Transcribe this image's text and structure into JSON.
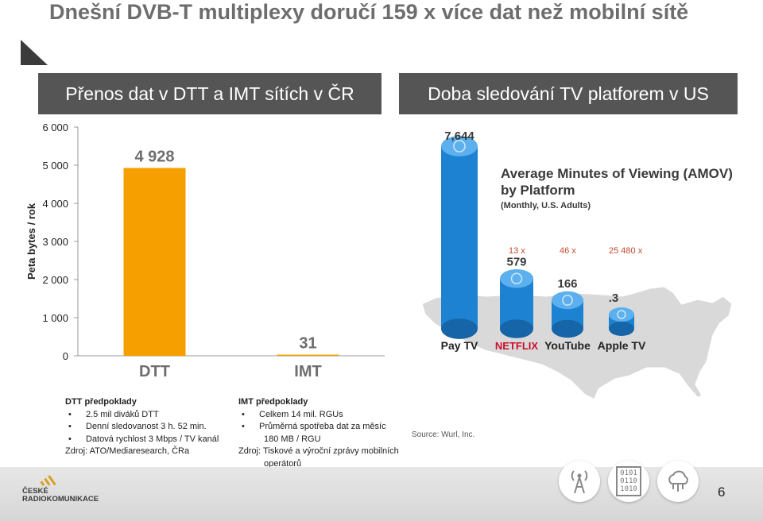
{
  "title": "Dnešní DVB-T multiplexy doručí 159 x více dat než mobilní sítě",
  "left_panel": {
    "heading": "Přenos dat v DTT  a IMT sítích v ČR"
  },
  "right_panel": {
    "heading": "Doba sledování TV platforem v US"
  },
  "chart_data": [
    {
      "type": "bar",
      "categories": [
        "DTT",
        "IMT"
      ],
      "values": [
        4928,
        31
      ],
      "value_labels": [
        "4 928",
        "31"
      ],
      "ylabel": "Peta bytes / rok",
      "ylim": [
        0,
        6000
      ],
      "yticks": [
        0,
        1000,
        2000,
        3000,
        4000,
        5000,
        6000
      ],
      "ytick_labels": [
        "0",
        "1 000",
        "2 000",
        "3 000",
        "4 000",
        "5 000",
        "6 000"
      ],
      "grid": false,
      "bar_color": "#f5a000"
    },
    {
      "type": "bar",
      "title": "Average Minutes of Viewing (AMOV) by Platform",
      "subtitle": "(Monthly, U.S. Adults)",
      "categories": [
        "Pay TV",
        "NETFLIX",
        "YouTube",
        "Apple TV"
      ],
      "values": [
        7644,
        579,
        166,
        0.3
      ],
      "value_labels": [
        "7,644",
        "579",
        "166",
        ".3"
      ],
      "ratio_labels": [
        "13 x",
        "46 x",
        "25 480  x"
      ],
      "bar_color": "#1e82d2"
    }
  ],
  "dtt_notes": {
    "head": "DTT  předpoklady",
    "items": [
      "2.5 mil diváků DTT",
      "Denní sledovanost  3 h. 52 min.",
      "Datová rychlost 3 Mbps / TV kanál"
    ],
    "source": "Zdroj: ATO/Mediaresearch, ČRa"
  },
  "imt_notes": {
    "head": "IMT předpoklady",
    "items": [
      "Celkem 14 mil. RGUs",
      "Průměrná spotřeba dat za měsíc"
    ],
    "extra": "180 MB / RGU",
    "source_line1": "Zdroj: Tiskové a výroční zprávy mobilních",
    "source_line2": "operátorů"
  },
  "amov_source": "Source: Wurl, Inc.",
  "footer": {
    "logo_line1": "ČESKÉ",
    "logo_line2": "RADIOKOMUNIKACE",
    "binary_lines": [
      "0101",
      "0110",
      "1010"
    ],
    "page_number": "6"
  },
  "colors": {
    "header_bg": "#555555",
    "title": "#6d6d6d",
    "dtt_bar": "#f5a000",
    "amov_bar": "#1e82d2",
    "ratio": "#c44a2e"
  }
}
